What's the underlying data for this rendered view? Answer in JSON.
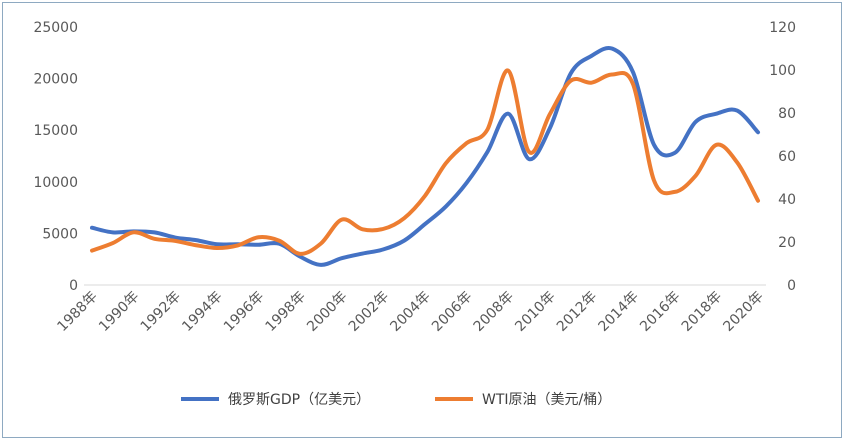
{
  "chart_data": {
    "type": "line",
    "title": "",
    "xlabel": "",
    "ylabel": "",
    "x": [
      1988,
      1989,
      1990,
      1991,
      1992,
      1993,
      1994,
      1995,
      1996,
      1997,
      1998,
      1999,
      2000,
      2001,
      2002,
      2003,
      2004,
      2005,
      2006,
      2007,
      2008,
      2009,
      2010,
      2011,
      2012,
      2013,
      2014,
      2015,
      2016,
      2017,
      2018,
      2019,
      2020
    ],
    "x_tick_labels": [
      "1988年",
      "1990年",
      "1992年",
      "1994年",
      "1996年",
      "1998年",
      "2000年",
      "2002年",
      "2004年",
      "2006年",
      "2008年",
      "2010年",
      "2012年",
      "2014年",
      "2016年",
      "2018年",
      "2020年"
    ],
    "y_left": {
      "range": [
        0,
        25000
      ],
      "ticks": [
        "0",
        "5000",
        "10000",
        "15000",
        "20000",
        "25000"
      ]
    },
    "y_right": {
      "range": [
        0,
        120
      ],
      "ticks": [
        "0",
        "20",
        "40",
        "60",
        "80",
        "100",
        "120"
      ]
    },
    "grid": false,
    "legend_position": "bottom",
    "series": [
      {
        "name": "俄罗斯GDP（亿美元）",
        "axis": "left",
        "color": "#4472c4",
        "values": [
          5550,
          5100,
          5200,
          5100,
          4600,
          4350,
          3950,
          3950,
          3900,
          4000,
          2750,
          1950,
          2600,
          3050,
          3450,
          4300,
          5900,
          7600,
          9900,
          12900,
          16600,
          12200,
          15200,
          20500,
          22200,
          22900,
          20600,
          13600,
          12800,
          15800,
          16600,
          16900,
          14800
        ]
      },
      {
        "name": "WTI原油（美元/桶）",
        "axis": "right",
        "color": "#ed7d31",
        "values": [
          16,
          19.5,
          24.5,
          21.5,
          20.5,
          18.5,
          17.2,
          18.4,
          22.2,
          20.6,
          14.5,
          19.3,
          30.4,
          25.9,
          26.1,
          31.1,
          41.5,
          56.6,
          66,
          72.3,
          99.7,
          61.9,
          79.5,
          95,
          94.1,
          97.9,
          93.3,
          48.7,
          43.3,
          50.8,
          65.2,
          57,
          39.2
        ]
      }
    ]
  },
  "legend": {
    "items": [
      {
        "label": "俄罗斯GDP（亿美元）",
        "color": "#4472c4"
      },
      {
        "label": "WTI原油（美元/桶）",
        "color": "#ed7d31"
      }
    ]
  }
}
